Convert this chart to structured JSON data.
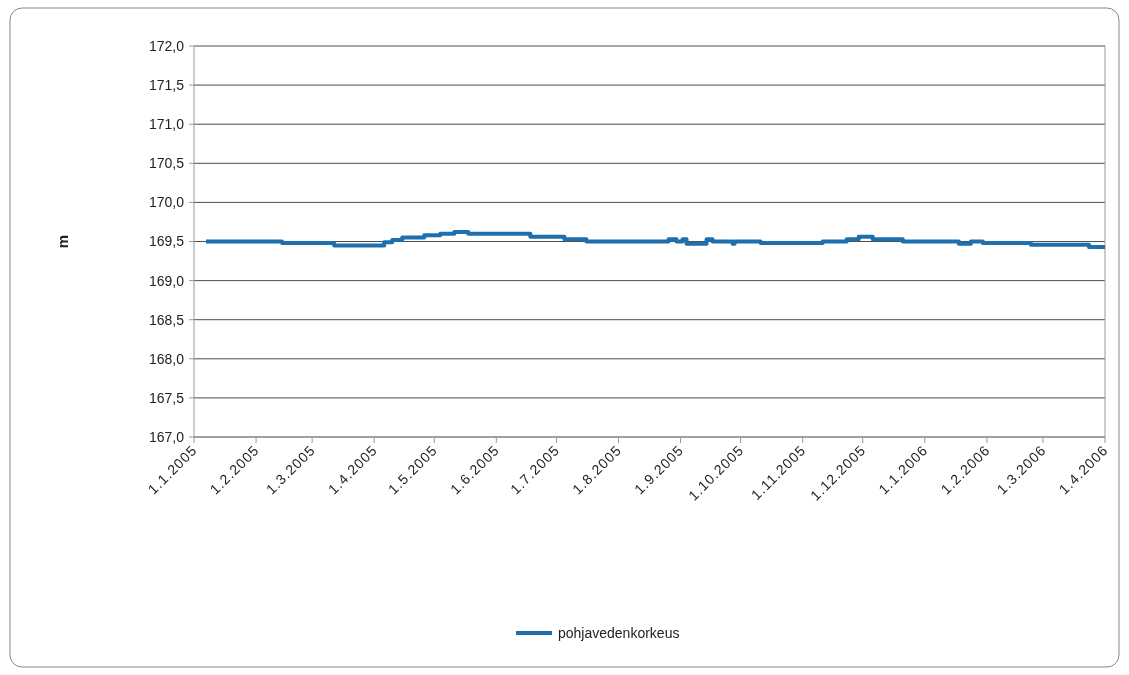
{
  "chart_data": {
    "type": "step",
    "ylabel": "m",
    "x": [
      "2005-01-07",
      "2005-02-14",
      "2005-03-12",
      "2005-04-06",
      "2005-04-10",
      "2005-04-15",
      "2005-04-26",
      "2005-05-04",
      "2005-05-11",
      "2005-05-18",
      "2005-06-18",
      "2005-07-05",
      "2005-07-16",
      "2005-08-26",
      "2005-08-30",
      "2005-09-02",
      "2005-09-04",
      "2005-09-14",
      "2005-09-17",
      "2005-09-27",
      "2005-09-28",
      "2005-10-11",
      "2005-11-11",
      "2005-11-23",
      "2005-11-29",
      "2005-12-06",
      "2005-12-21",
      "2006-01-18",
      "2006-01-24",
      "2006-01-30",
      "2006-02-23",
      "2006-03-24",
      "2006-04-01"
    ],
    "series": [
      {
        "name": "pohjavedenkorkeus",
        "color": "#1f6fad",
        "values": [
          169.5,
          169.48,
          169.45,
          169.49,
          169.52,
          169.55,
          169.58,
          169.6,
          169.62,
          169.6,
          169.56,
          169.53,
          169.5,
          169.53,
          169.5,
          169.53,
          169.47,
          169.53,
          169.5,
          169.47,
          169.5,
          169.48,
          169.5,
          169.53,
          169.56,
          169.53,
          169.5,
          169.47,
          169.5,
          169.48,
          169.46,
          169.43,
          169.43
        ]
      }
    ],
    "xlim": [
      "2005-01-01",
      "2006-04-01"
    ],
    "xticks": [
      {
        "value": "2005-01-01",
        "label": "1.1.2005"
      },
      {
        "value": "2005-02-01",
        "label": "1.2.2005"
      },
      {
        "value": "2005-03-01",
        "label": "1.3.2005"
      },
      {
        "value": "2005-04-01",
        "label": "1.4.2005"
      },
      {
        "value": "2005-05-01",
        "label": "1.5.2005"
      },
      {
        "value": "2005-06-01",
        "label": "1.6.2005"
      },
      {
        "value": "2005-07-01",
        "label": "1.7.2005"
      },
      {
        "value": "2005-08-01",
        "label": "1.8.2005"
      },
      {
        "value": "2005-09-01",
        "label": "1.9.2005"
      },
      {
        "value": "2005-10-01",
        "label": "1.10.2005"
      },
      {
        "value": "2005-11-01",
        "label": "1.11.2005"
      },
      {
        "value": "2005-12-01",
        "label": "1.12.2005"
      },
      {
        "value": "2006-01-01",
        "label": "1.1.2006"
      },
      {
        "value": "2006-02-01",
        "label": "1.2.2006"
      },
      {
        "value": "2006-03-01",
        "label": "1.3.2006"
      },
      {
        "value": "2006-04-01",
        "label": "1.4.2006"
      }
    ],
    "ylim": [
      167,
      172
    ],
    "yticks": [
      {
        "value": 167,
        "label": "167,0"
      },
      {
        "value": 167.5,
        "label": "167,5"
      },
      {
        "value": 168,
        "label": "168,0"
      },
      {
        "value": 168.5,
        "label": "168,5"
      },
      {
        "value": 169,
        "label": "169,0"
      },
      {
        "value": 169.5,
        "label": "169,5"
      },
      {
        "value": 170,
        "label": "170,0"
      },
      {
        "value": 170.5,
        "label": "170,5"
      },
      {
        "value": 171,
        "label": "171,0"
      },
      {
        "value": 171.5,
        "label": "171,5"
      },
      {
        "value": 172,
        "label": "172,0"
      }
    ],
    "grid": "y",
    "legend": "bottom",
    "line_style": "solid"
  }
}
